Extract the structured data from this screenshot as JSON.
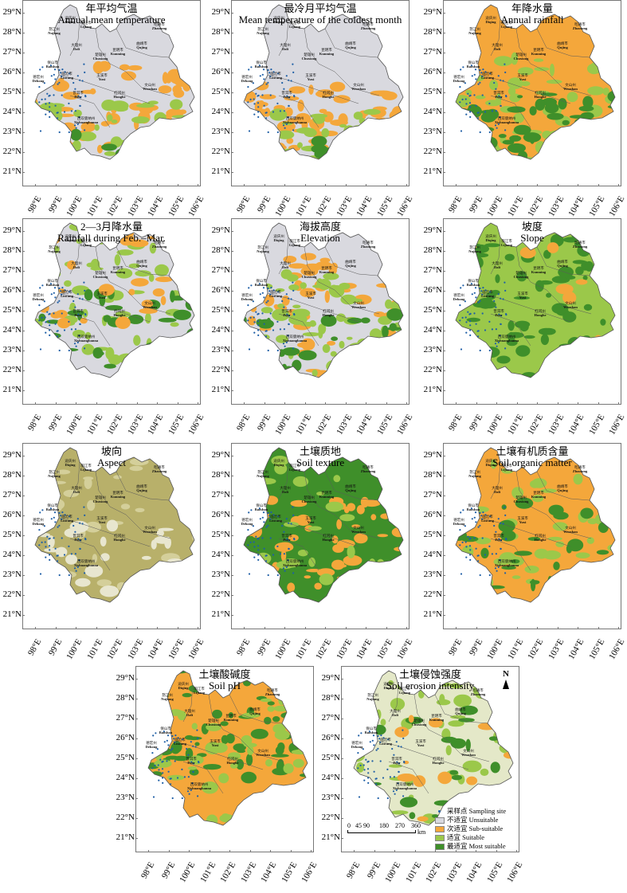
{
  "latitude_labels": [
    "29°N",
    "28°N",
    "27°N",
    "26°N",
    "25°N",
    "24°N",
    "23°N",
    "22°N",
    "21°N"
  ],
  "longitude_labels": [
    "98°E",
    "99°E",
    "100°E",
    "101°E",
    "102°E",
    "103°E",
    "104°E",
    "105°E",
    "106°E"
  ],
  "colors": {
    "unsuitable": "#d9d9df",
    "sub_suitable": "#f4a73b",
    "suitable": "#9bc84a",
    "most_suitable": "#3f8f2a",
    "aspect_tone": "#b8b06a",
    "sampling_site": "#1f5fa6"
  },
  "panels": [
    {
      "cn": "年平均气温",
      "en": "Annual mean temperature",
      "scheme": "temp"
    },
    {
      "cn": "最冷月平均气温",
      "en": "Mean temperature of the coldest month",
      "scheme": "cold"
    },
    {
      "cn": "年降水量",
      "en": "Annual rainfall",
      "scheme": "rain"
    },
    {
      "cn": "2—3月降水量",
      "en": "Rainfall during Feb.–Mar.",
      "scheme": "febmar"
    },
    {
      "cn": "海拔高度",
      "en": "Elevation",
      "scheme": "elev"
    },
    {
      "cn": "坡度",
      "en": "Slope",
      "scheme": "slope"
    },
    {
      "cn": "坡向",
      "en": "Aspect",
      "scheme": "aspect"
    },
    {
      "cn": "土壤质地",
      "en": "Soil texture",
      "scheme": "texture"
    },
    {
      "cn": "土壤有机质含量",
      "en": "Soil organic matter",
      "scheme": "organic"
    },
    {
      "cn": "土壤酸碱度",
      "en": "Soil pH",
      "scheme": "ph"
    },
    {
      "cn": "土壤侵蚀强度",
      "en": "Soil erosion intensity",
      "scheme": "erosion"
    }
  ],
  "prefectures": [
    {
      "cn": "迪庆州",
      "en": "Diqing"
    },
    {
      "cn": "丽江市",
      "en": "Lijiang"
    },
    {
      "cn": "怒江州",
      "en": "Nujiang"
    },
    {
      "cn": "昭通市",
      "en": "Zhaotong"
    },
    {
      "cn": "大理州",
      "en": "Dali"
    },
    {
      "cn": "楚雄州",
      "en": "Chuxiong"
    },
    {
      "cn": "昆明市",
      "en": "Kunming"
    },
    {
      "cn": "曲靖市",
      "en": "Qujing"
    },
    {
      "cn": "保山市",
      "en": "Baoshan"
    },
    {
      "cn": "德宏州",
      "en": "Dehong"
    },
    {
      "cn": "临沧市",
      "en": "Lincang"
    },
    {
      "cn": "玉溪市",
      "en": "Yuxi"
    },
    {
      "cn": "普洱市",
      "en": "Puer"
    },
    {
      "cn": "红河州",
      "en": "Honghe"
    },
    {
      "cn": "文山州",
      "en": "Wenshan"
    },
    {
      "cn": "西双版纳州",
      "en": "Xishuangbanna"
    }
  ],
  "legend": {
    "sampling_site": "采样点 Sampling site",
    "unsuitable": "不适宜 Unsuitable",
    "sub_suitable": "次适宜 Sub-suitable",
    "suitable": "适宜 Suitable",
    "most_suitable": "最适宜 Most suitable"
  },
  "scale_bar": {
    "ticks": [
      "0",
      "45",
      "90",
      "180",
      "270",
      "360"
    ],
    "unit": "km"
  },
  "north_arrow": "N"
}
